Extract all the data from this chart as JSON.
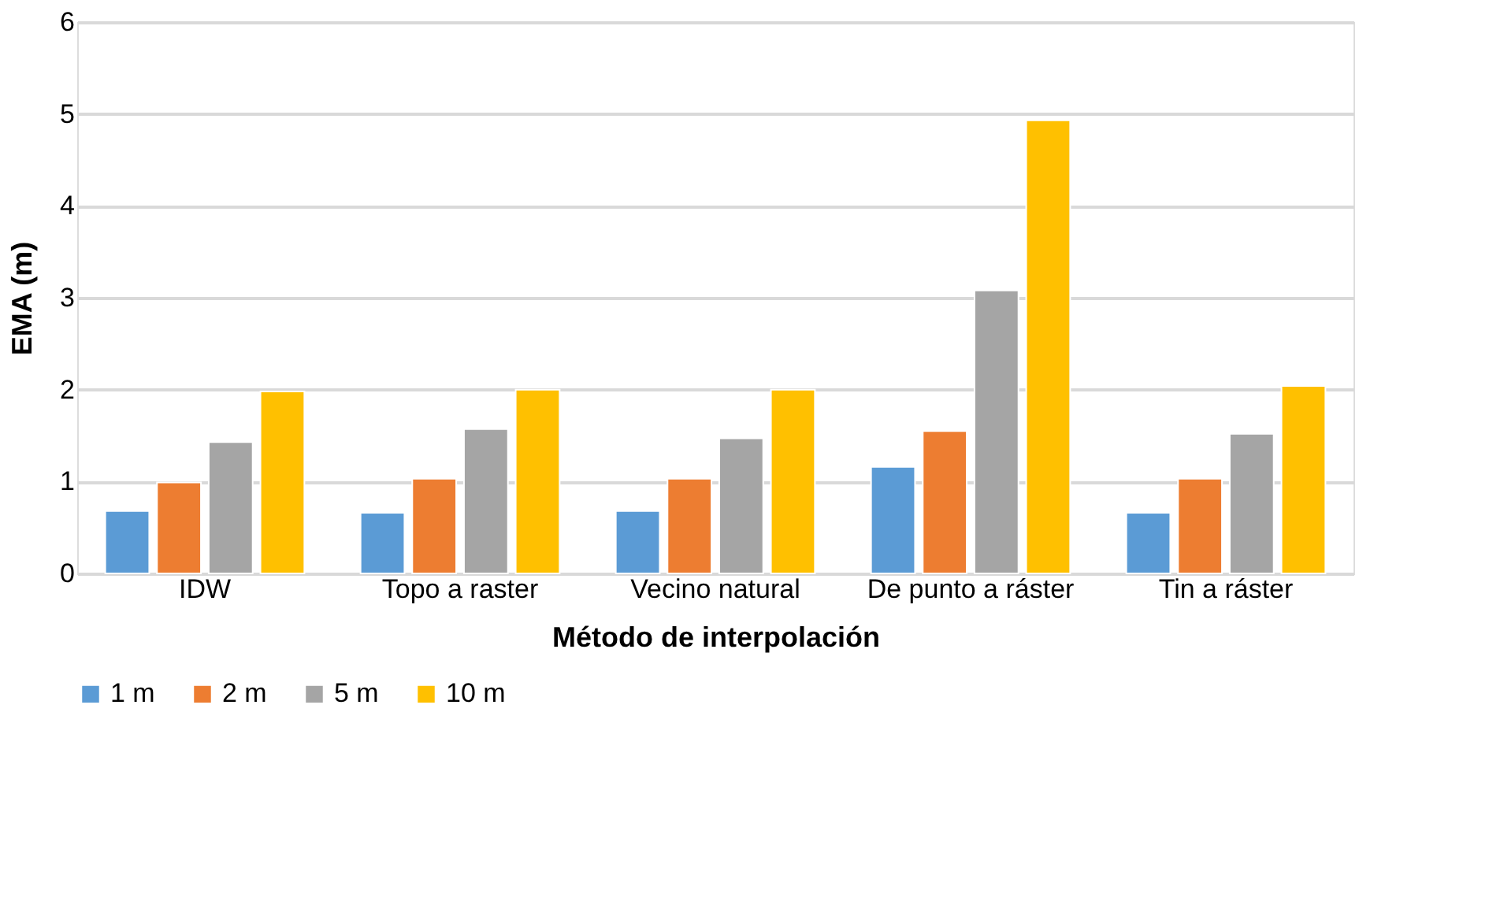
{
  "chart_data": {
    "type": "bar",
    "xlabel": "Método de interpolación",
    "ylabel": "EMA (m)",
    "categories": [
      "IDW",
      "Topo a raster",
      "Vecino natural",
      "De punto a ráster",
      "Tin a ráster"
    ],
    "series": [
      {
        "name": "1 m",
        "color": "#5b9bd5",
        "values": [
          0.68,
          0.66,
          0.68,
          1.16,
          0.66
        ]
      },
      {
        "name": "2 m",
        "color": "#ed7d31",
        "values": [
          0.99,
          1.03,
          1.03,
          1.55,
          1.03
        ]
      },
      {
        "name": "5 m",
        "color": "#a5a5a5",
        "values": [
          1.43,
          1.57,
          1.47,
          3.08,
          1.52
        ]
      },
      {
        "name": "10 m",
        "color": "#ffc000",
        "values": [
          1.98,
          2.0,
          2.0,
          4.93,
          2.04
        ]
      }
    ],
    "ylim": [
      0,
      6
    ],
    "yticks": [
      0,
      1,
      2,
      3,
      4,
      5,
      6
    ],
    "grid": "y",
    "legend": "bottom"
  }
}
